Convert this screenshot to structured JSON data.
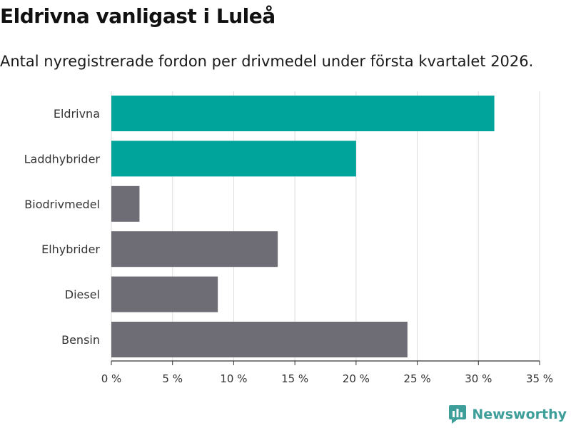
{
  "title": "Eldrivna vanligast i Luleå",
  "subtitle": "Antal nyregistrerade fordon per drivmedel under första kvartalet 2026.",
  "brand": {
    "name": "Newsworthy",
    "icon": "newsworthy-logo-icon"
  },
  "colors": {
    "highlight": "#00a49a",
    "default": "#6e6d75",
    "grid": "#dddddd",
    "axis": "#333333",
    "brand": "#3d9e9a"
  },
  "chart_data": {
    "type": "bar",
    "orientation": "horizontal",
    "categories": [
      "Eldrivna",
      "Laddhybrider",
      "Biodrivmedel",
      "Elhybrider",
      "Diesel",
      "Bensin"
    ],
    "values": [
      31.3,
      20.0,
      2.3,
      13.6,
      8.7,
      24.2
    ],
    "highlighted": [
      true,
      true,
      false,
      false,
      false,
      false
    ],
    "xlim": [
      0,
      35
    ],
    "xticks": [
      0,
      5,
      10,
      15,
      20,
      25,
      30,
      35
    ],
    "xtick_labels": [
      "0 %",
      "5 %",
      "10 %",
      "15 %",
      "20 %",
      "25 %",
      "30 %",
      "35 %"
    ],
    "xlabel": "",
    "ylabel": "",
    "grid": true,
    "legend": "none"
  }
}
